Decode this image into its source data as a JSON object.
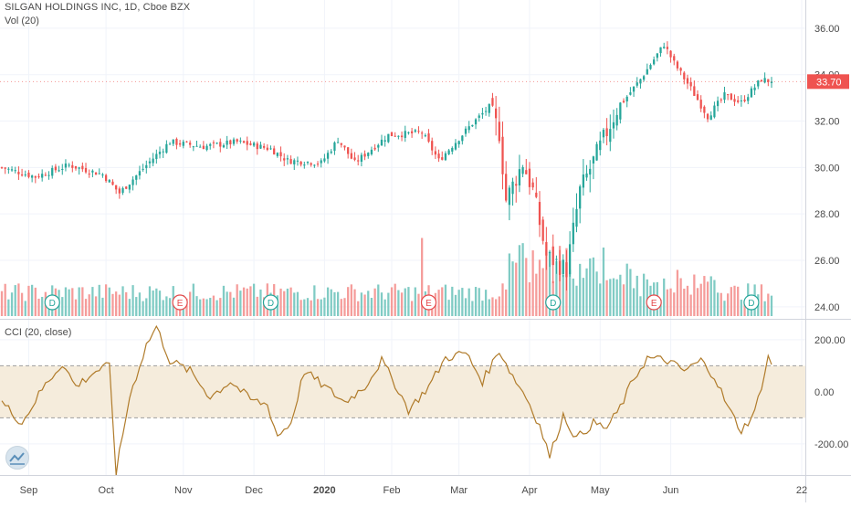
{
  "legend": {
    "symbol_line": "SILGAN HOLDINGS INC, 1D, Cboe BZX",
    "volume_label": "Vol (20)",
    "cci_label": "CCI (20, close)"
  },
  "last_price_tag": "33.70",
  "colors": {
    "up": "#26a69a",
    "down": "#ef5350",
    "vol_up": "#80cbc4",
    "vol_down": "#f59c9a",
    "cci_line": "#b07b2a",
    "cci_band": "#f5ecdc",
    "axis_text": "#4a4a4a",
    "grid": "#f0f3fa",
    "event_e": "#e5494b",
    "event_d": "#26a69a"
  },
  "event_markers": [
    {
      "label": "D",
      "type": "dividend",
      "date_index": 15
    },
    {
      "label": "E",
      "type": "earnings",
      "date_index": 53
    },
    {
      "label": "D",
      "type": "dividend",
      "date_index": 80
    },
    {
      "label": "E",
      "type": "earnings",
      "date_index": 127
    },
    {
      "label": "D",
      "type": "dividend",
      "date_index": 164
    },
    {
      "label": "E",
      "type": "earnings",
      "date_index": 194
    },
    {
      "label": "D",
      "type": "dividend",
      "date_index": 223
    }
  ],
  "chart_data": [
    {
      "type": "candlestick",
      "title": "SILGAN HOLDINGS INC, 1D, Cboe BZX",
      "x_tick_labels": [
        "Sep",
        "Oct",
        "Nov",
        "Dec",
        "2020",
        "Feb",
        "Mar",
        "Apr",
        "May",
        "Jun",
        "22"
      ],
      "y_tick_labels": [
        "24.00",
        "26.00",
        "28.00",
        "30.00",
        "32.00",
        "34.00",
        "36.00"
      ],
      "ylim": [
        23.6,
        36.9
      ],
      "last_value": 33.7,
      "close_anchors": [
        [
          0,
          30.0
        ],
        [
          10,
          29.6
        ],
        [
          20,
          30.1
        ],
        [
          30,
          29.7
        ],
        [
          35,
          28.9
        ],
        [
          45,
          30.4
        ],
        [
          50,
          31.1
        ],
        [
          60,
          30.9
        ],
        [
          70,
          31.1
        ],
        [
          80,
          30.8
        ],
        [
          85,
          30.3
        ],
        [
          95,
          30.2
        ],
        [
          100,
          31.2
        ],
        [
          105,
          30.2
        ],
        [
          115,
          31.4
        ],
        [
          125,
          31.5
        ],
        [
          130,
          30.3
        ],
        [
          140,
          31.9
        ],
        [
          145,
          32.6
        ],
        [
          148,
          31.5
        ],
        [
          150,
          28.6
        ],
        [
          155,
          30.2
        ],
        [
          158,
          29.0
        ],
        [
          162,
          26.2
        ],
        [
          168,
          25.6
        ],
        [
          172,
          29.0
        ],
        [
          178,
          30.9
        ],
        [
          183,
          32.5
        ],
        [
          190,
          33.8
        ],
        [
          197,
          35.3
        ],
        [
          200,
          34.5
        ],
        [
          205,
          33.4
        ],
        [
          210,
          32.2
        ],
        [
          215,
          33.1
        ],
        [
          220,
          32.8
        ],
        [
          226,
          33.8
        ],
        [
          229,
          33.7
        ]
      ]
    },
    {
      "type": "bar",
      "title": "Vol (20)",
      "note": "relative daily volume, colored by candle direction"
    },
    {
      "type": "line",
      "title": "CCI (20, close)",
      "y_tick_labels": [
        "200.00",
        "0.00",
        "-200.00"
      ],
      "ylim": [
        -320,
        270
      ],
      "band": [
        -100,
        100
      ],
      "anchors": [
        [
          0,
          -40
        ],
        [
          6,
          -120
        ],
        [
          12,
          10
        ],
        [
          18,
          110
        ],
        [
          22,
          20
        ],
        [
          28,
          80
        ],
        [
          32,
          100
        ],
        [
          34,
          -310
        ],
        [
          38,
          -20
        ],
        [
          43,
          180
        ],
        [
          46,
          250
        ],
        [
          50,
          120
        ],
        [
          56,
          80
        ],
        [
          62,
          -20
        ],
        [
          68,
          40
        ],
        [
          74,
          -30
        ],
        [
          79,
          -50
        ],
        [
          82,
          -170
        ],
        [
          86,
          -120
        ],
        [
          90,
          80
        ],
        [
          96,
          20
        ],
        [
          102,
          -40
        ],
        [
          108,
          20
        ],
        [
          113,
          120
        ],
        [
          117,
          30
        ],
        [
          121,
          -70
        ],
        [
          127,
          20
        ],
        [
          132,
          130
        ],
        [
          138,
          150
        ],
        [
          143,
          40
        ],
        [
          148,
          160
        ],
        [
          152,
          60
        ],
        [
          156,
          -20
        ],
        [
          160,
          -130
        ],
        [
          163,
          -250
        ],
        [
          167,
          -90
        ],
        [
          171,
          -180
        ],
        [
          176,
          -120
        ],
        [
          180,
          -140
        ],
        [
          184,
          -60
        ],
        [
          188,
          50
        ],
        [
          192,
          130
        ],
        [
          198,
          120
        ],
        [
          203,
          80
        ],
        [
          208,
          120
        ],
        [
          212,
          60
        ],
        [
          216,
          -60
        ],
        [
          220,
          -150
        ],
        [
          224,
          -80
        ],
        [
          228,
          130
        ],
        [
          230,
          90
        ]
      ]
    }
  ]
}
